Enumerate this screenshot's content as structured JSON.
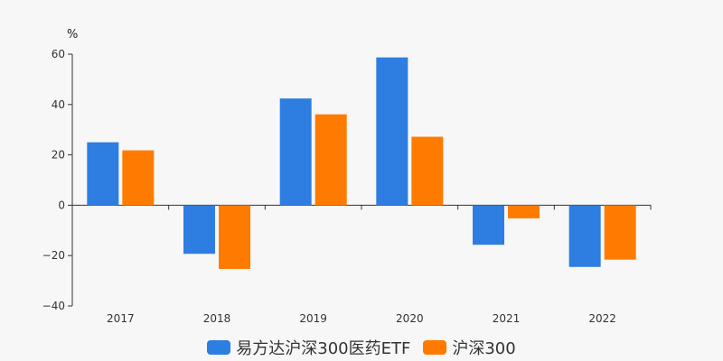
{
  "chart_data": {
    "type": "bar",
    "unit_label": "%",
    "categories": [
      "2017",
      "2018",
      "2019",
      "2020",
      "2021",
      "2022"
    ],
    "series": [
      {
        "name": "易方达沪深300医药ETF",
        "color": "#2e7de1",
        "values": [
          25.0,
          -19.3,
          42.4,
          58.7,
          -15.7,
          -24.5
        ]
      },
      {
        "name": "沪深300",
        "color": "#ff7b00",
        "values": [
          21.8,
          -25.3,
          36.1,
          27.2,
          -5.2,
          -21.6
        ]
      }
    ],
    "ylim": [
      -40,
      60
    ],
    "yticks": [
      "60",
      "40",
      "20",
      "0",
      "−20",
      "−40"
    ],
    "grid": false,
    "legend_position": "bottom"
  }
}
